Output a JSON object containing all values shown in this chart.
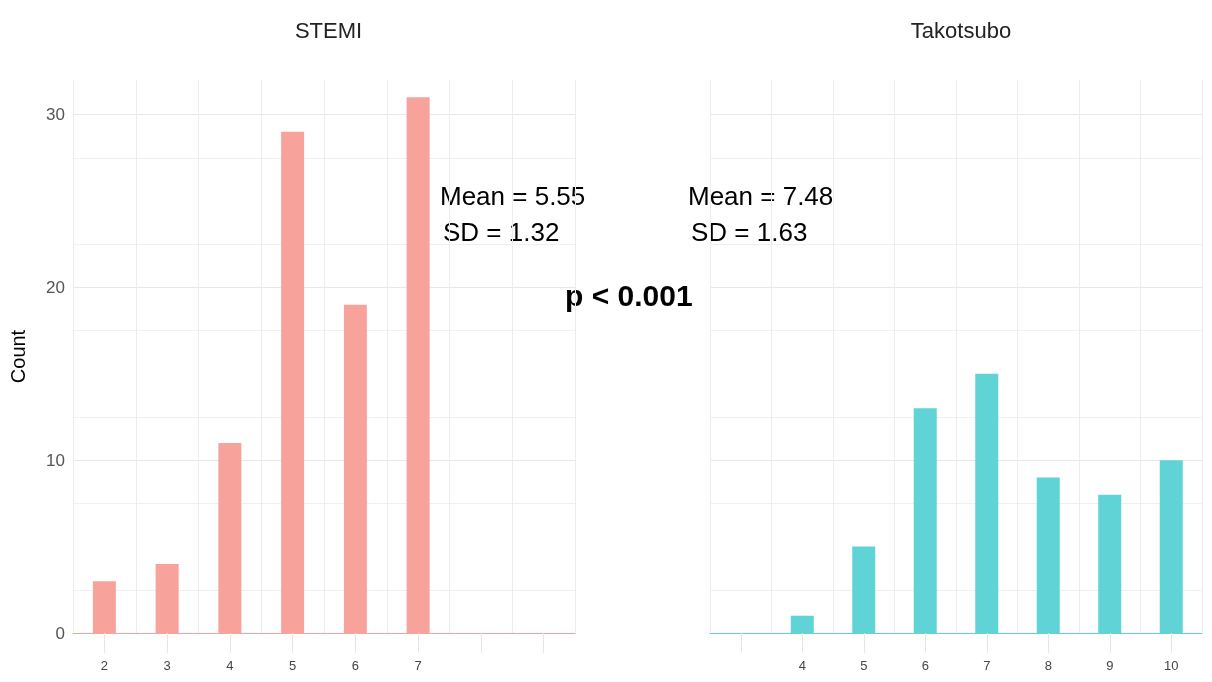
{
  "chart_data": [
    {
      "type": "bar",
      "title": "STEMI",
      "ylabel": "Count",
      "categories": [
        "2",
        "3",
        "4",
        "5",
        "6",
        "7",
        null,
        null
      ],
      "values": [
        3,
        4,
        11,
        29,
        19,
        31,
        null,
        null
      ],
      "color": "#f7a39b",
      "ylim": [
        0,
        32
      ],
      "yticks": [
        0,
        10,
        20,
        30
      ],
      "grid": true,
      "annotations": [
        "Mean = 5.55",
        "SD = 1.32",
        "p < 0.001"
      ]
    },
    {
      "type": "bar",
      "title": "Takotsubo",
      "categories": [
        null,
        "4",
        "5",
        "6",
        "7",
        "8",
        "9",
        "10"
      ],
      "values": [
        null,
        1,
        5,
        13,
        15,
        9,
        8,
        10
      ],
      "color": "#5fd3d6",
      "ylim": [
        0,
        32
      ],
      "yticks": [
        0,
        10,
        20,
        30
      ],
      "grid": true,
      "tick_labels": "x",
      "annotations": [
        "Mean = 7.48",
        "SD = 1.63"
      ]
    }
  ]
}
